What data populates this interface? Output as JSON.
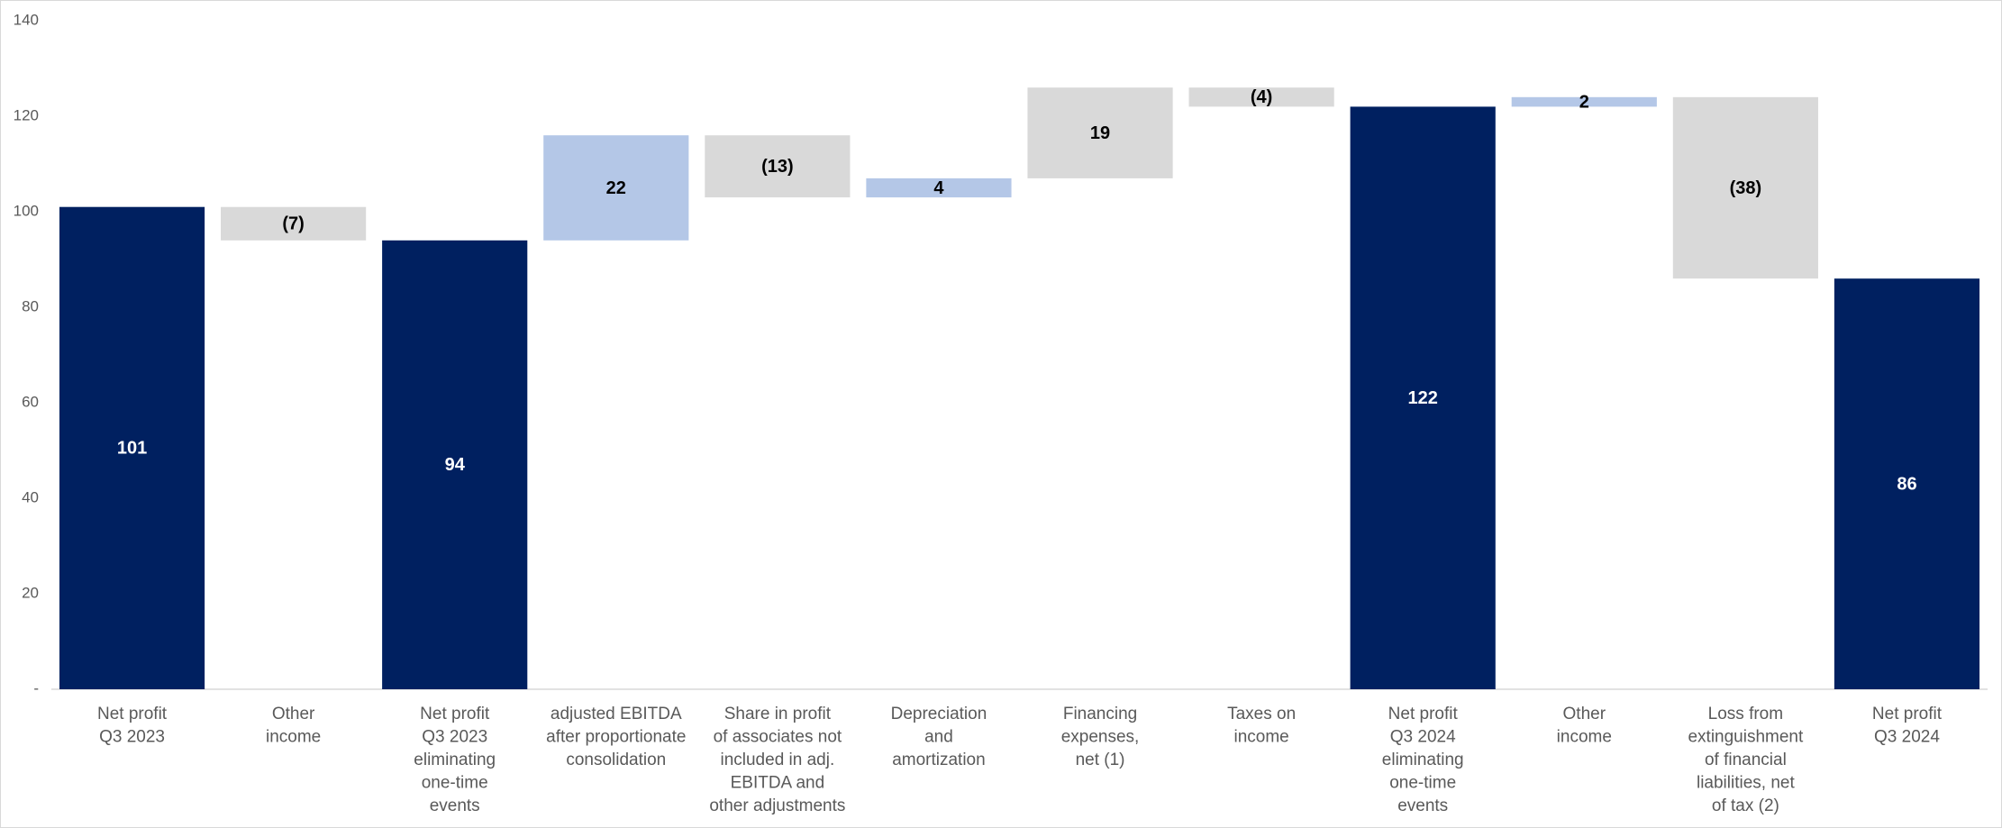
{
  "chart_data": {
    "type": "waterfall",
    "categories": [
      [
        "Net profit",
        "Q3 2023"
      ],
      [
        "Other",
        "income"
      ],
      [
        "Net profit",
        "Q3 2023",
        "eliminating",
        "one-time",
        "events"
      ],
      [
        "adjusted EBITDA",
        "after proportionate",
        "consolidation"
      ],
      [
        "Share in profit",
        "of associates not",
        "included in adj.",
        "EBITDA and",
        "other adjustments"
      ],
      [
        "Depreciation",
        "and",
        "amortization"
      ],
      [
        "Financing",
        "expenses,",
        "net (1)"
      ],
      [
        "Taxes on",
        "income"
      ],
      [
        "Net profit",
        "Q3 2024",
        "eliminating",
        "one-time",
        "events"
      ],
      [
        "Other",
        "income"
      ],
      [
        "Loss from",
        "extinguishment",
        "of financial",
        "liabilities, net",
        "of tax (2)"
      ],
      [
        "Net profit",
        "Q3 2024"
      ]
    ],
    "values": [
      101,
      -7,
      94,
      22,
      -13,
      4,
      19,
      -4,
      122,
      2,
      -38,
      86
    ],
    "value_labels": [
      "101",
      "(7)",
      "94",
      "22",
      "(13)",
      "4",
      "19",
      "(4)",
      "122",
      "2",
      "(38)",
      "86"
    ],
    "measures": [
      "total",
      "relative",
      "total",
      "relative",
      "relative",
      "relative",
      "relative",
      "relative",
      "total",
      "relative",
      "relative",
      "total"
    ],
    "colors": [
      "#002060",
      "#d9d9d9",
      "#002060",
      "#b4c7e7",
      "#d9d9d9",
      "#b4c7e7",
      "#d9d9d9",
      "#d9d9d9",
      "#002060",
      "#b4c7e7",
      "#d9d9d9",
      "#002060"
    ],
    "ylim": [
      0,
      140
    ],
    "yticks": [
      {
        "value": 0,
        "label": "-"
      },
      20,
      40,
      60,
      80,
      100,
      120,
      140
    ],
    "grid": false
  }
}
